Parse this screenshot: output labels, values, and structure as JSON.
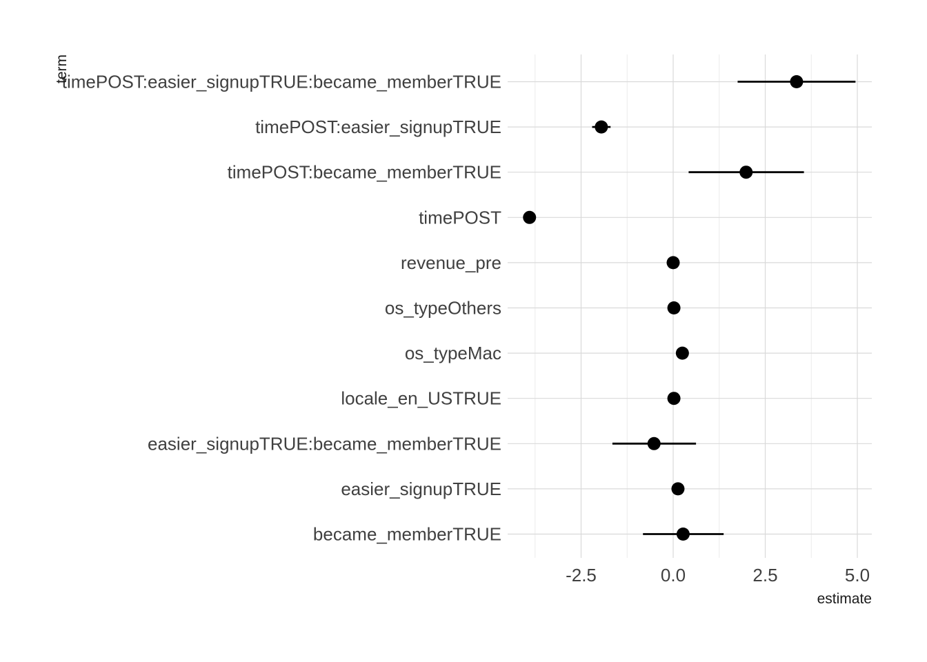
{
  "chart_data": {
    "type": "scatter",
    "xlabel": "estimate",
    "ylabel": "term",
    "xlim": [
      -4.0,
      5.4
    ],
    "x_ticks": [
      -2.5,
      0.0,
      2.5,
      5.0
    ],
    "x_tick_labels": [
      "-2.5",
      "0.0",
      "2.5",
      "5.0"
    ],
    "grid": true,
    "terms": [
      {
        "term": "timePOST:easier_signupTRUE:became_memberTRUE",
        "estimate": 3.35,
        "conf_low": 1.75,
        "conf_high": 4.95
      },
      {
        "term": "timePOST:easier_signupTRUE",
        "estimate": -1.95,
        "conf_low": -2.2,
        "conf_high": -1.7
      },
      {
        "term": "timePOST:became_memberTRUE",
        "estimate": 1.98,
        "conf_low": 0.42,
        "conf_high": 3.55
      },
      {
        "term": "timePOST",
        "estimate": -3.9,
        "conf_low": -3.9,
        "conf_high": -3.9
      },
      {
        "term": "revenue_pre",
        "estimate": 0.0,
        "conf_low": 0.0,
        "conf_high": 0.0
      },
      {
        "term": "os_typeOthers",
        "estimate": 0.02,
        "conf_low": 0.02,
        "conf_high": 0.02
      },
      {
        "term": "os_typeMac",
        "estimate": 0.25,
        "conf_low": 0.25,
        "conf_high": 0.25
      },
      {
        "term": "locale_en_USTRUE",
        "estimate": 0.02,
        "conf_low": 0.02,
        "conf_high": 0.02
      },
      {
        "term": "easier_signupTRUE:became_memberTRUE",
        "estimate": -0.52,
        "conf_low": -1.65,
        "conf_high": 0.62
      },
      {
        "term": "easier_signupTRUE",
        "estimate": 0.13,
        "conf_low": 0.05,
        "conf_high": 0.21
      },
      {
        "term": "became_memberTRUE",
        "estimate": 0.27,
        "conf_low": -0.82,
        "conf_high": 1.37
      }
    ]
  }
}
